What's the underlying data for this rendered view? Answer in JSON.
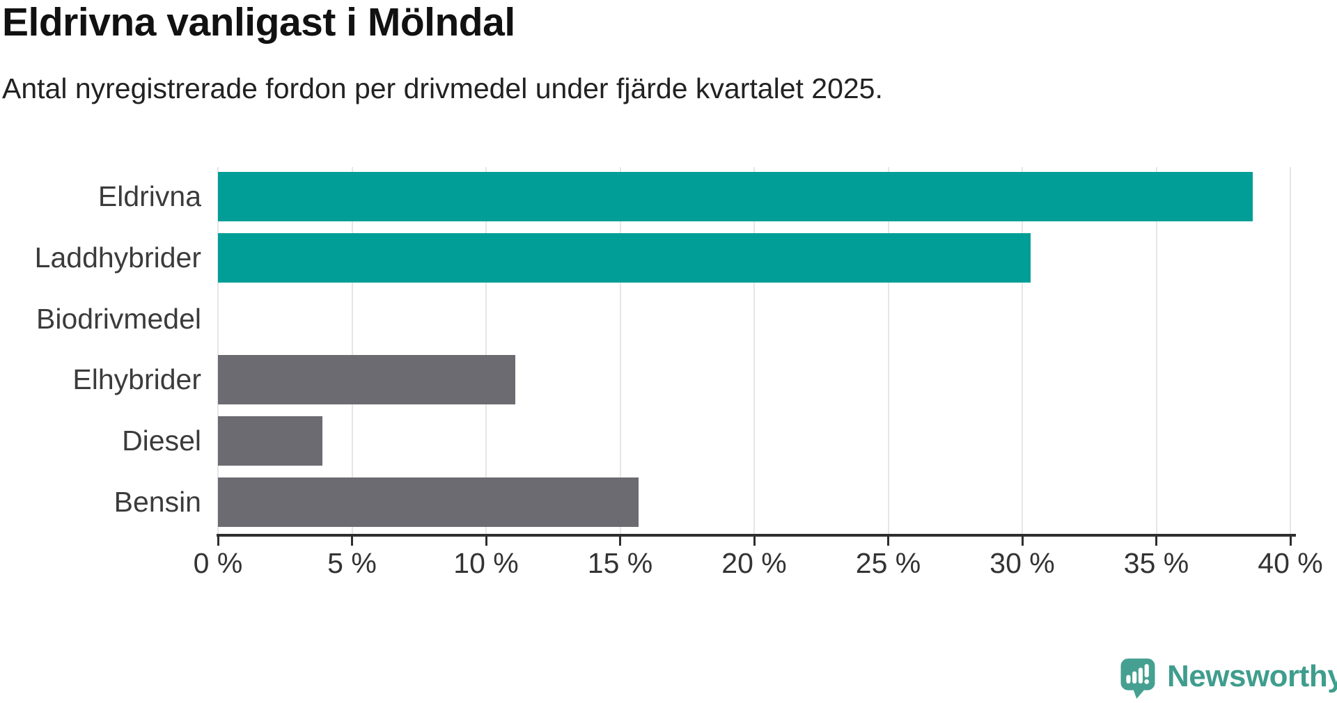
{
  "header": {
    "title": "Eldrivna vanligast i Mölndal",
    "subtitle": "Antal nyregistrerade fordon per drivmedel under fjärde kvartalet 2025."
  },
  "chart_data": {
    "type": "bar",
    "orientation": "horizontal",
    "title": "Eldrivna vanligast i Mölndal",
    "subtitle": "Antal nyregistrerade fordon per drivmedel under fjärde kvartalet 2025.",
    "categories": [
      "Eldrivna",
      "Laddhybrider",
      "Biodrivmedel",
      "Elhybrider",
      "Diesel",
      "Bensin"
    ],
    "values": [
      38.6,
      30.3,
      0,
      11.1,
      3.9,
      15.7
    ],
    "unit": "%",
    "xlim": [
      0,
      40
    ],
    "x_tick_labels": [
      "0 %",
      "5 %",
      "10 %",
      "15 %",
      "20 %",
      "25 %",
      "30 %",
      "35 %",
      "40 %"
    ],
    "grid": "vertical",
    "legend": "none",
    "highlight_color": "#009e97",
    "default_color": "#6b6b71",
    "bar_colors": [
      "#009e97",
      "#009e97",
      "#6b6b71",
      "#6b6b71",
      "#6b6b71",
      "#6b6b71"
    ]
  },
  "branding": {
    "logo_text": "Newsworthy",
    "logo_text_color": "#3f9d8d",
    "logo_icon": "newsworthy-speech-bubble-chart-icon",
    "logo_icon_color": "#45a091"
  }
}
